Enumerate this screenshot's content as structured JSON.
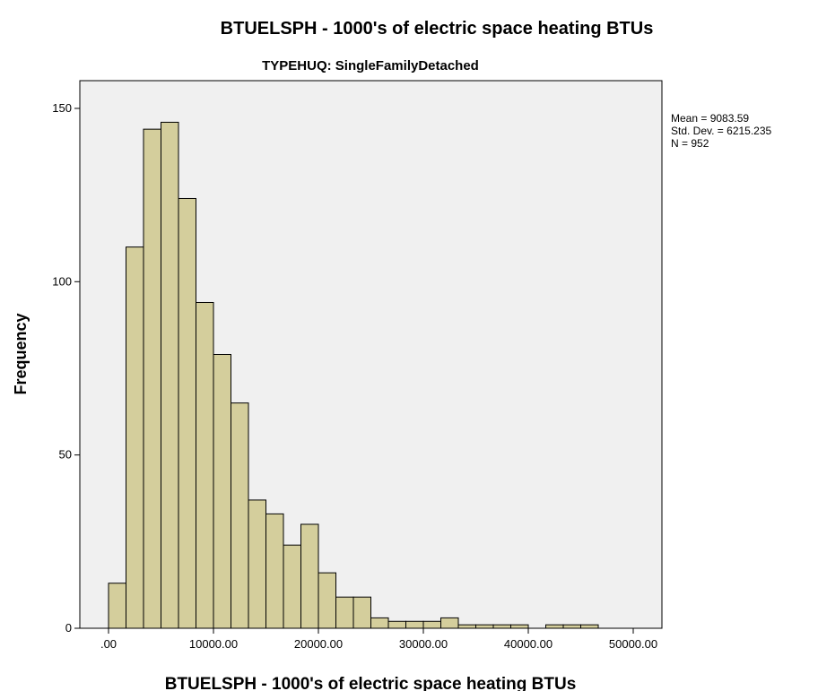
{
  "chart_data": {
    "type": "histogram",
    "title": "BTUELSPH - 1000's of electric space heating BTUs",
    "subtitle": "TYPEHUQ: SingleFamilyDetached",
    "x_label": "BTUELSPH - 1000's of electric space heating BTUs",
    "y_label": "Frequency",
    "annotations": [
      "Mean = 9083.59",
      "Std. Dev. = 6215.235",
      "N = 952"
    ],
    "bins": [
      0,
      1666.67,
      3333.33,
      5000,
      6666.67,
      8333.33,
      10000,
      11666.67,
      13333.33,
      15000,
      16666.67,
      18333.33,
      20000,
      21666.67,
      23333.33,
      25000,
      26666.67,
      28333.33,
      30000,
      31666.67,
      33333.33,
      35000,
      36666.67,
      38333.33,
      40000,
      41666.67,
      43333.33,
      45000,
      46666.67
    ],
    "values": [
      13,
      110,
      144,
      146,
      124,
      94,
      79,
      65,
      37,
      33,
      24,
      30,
      16,
      9,
      9,
      3,
      2,
      2,
      2,
      3,
      1,
      1,
      1,
      1,
      0,
      1,
      1,
      1
    ],
    "color": "#d4ce9c",
    "background": "#f0f0f0",
    "xlim": [
      -2735,
      52735
    ],
    "ylim": [
      0,
      158
    ],
    "xticks": [
      {
        "value": 0,
        "label": ".00"
      },
      {
        "value": 10000,
        "label": "10000.00"
      },
      {
        "value": 20000,
        "label": "20000.00"
      },
      {
        "value": 30000,
        "label": "30000.00"
      },
      {
        "value": 40000,
        "label": "40000.00"
      },
      {
        "value": 50000,
        "label": "50000.00"
      }
    ],
    "yticks": [
      0,
      50,
      100,
      150
    ]
  }
}
